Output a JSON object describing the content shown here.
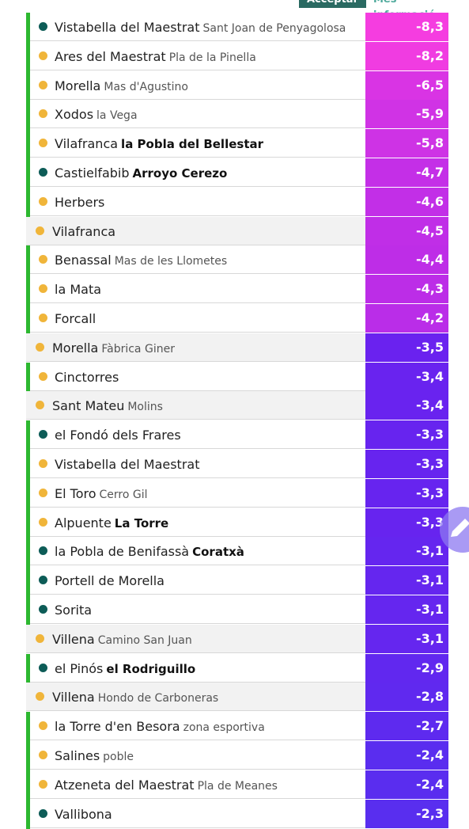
{
  "header": {
    "buttons": [
      "Acceptar",
      "Més informació"
    ]
  },
  "table": {
    "rows": [
      {
        "name": "Vistabella del Maestrat",
        "sub": "Sant Joan de Penyagolosa",
        "value": "-8,3",
        "dot": "#0d5c57",
        "bar": true,
        "shaded": false,
        "color": "#f53de0"
      },
      {
        "name": "Ares del Maestrat",
        "sub": "Pla de la Pinella",
        "value": "-8,2",
        "dot": "#f0b53a",
        "bar": true,
        "shaded": false,
        "color": "#f03ce1"
      },
      {
        "name": "Morella",
        "sub": "Mas d'Agustino",
        "value": "-6,5",
        "dot": "#f0b53a",
        "bar": true,
        "shaded": false,
        "color": "#d934e4"
      },
      {
        "name": "Xodos",
        "sub": "la Vega",
        "value": "-5,9",
        "dot": "#f0b53a",
        "bar": true,
        "shaded": false,
        "color": "#d033e5"
      },
      {
        "name": "Vilafranca",
        "sub": "la Pobla del Bellestar",
        "bold": true,
        "value": "-5,8",
        "dot": "#f0b53a",
        "bar": true,
        "shaded": false,
        "color": "#ce33e5"
      },
      {
        "name": "Castielfabib",
        "sub": "Arroyo Cerezo",
        "bold": true,
        "value": "-4,7",
        "dot": "#0d5c57",
        "bar": true,
        "shaded": false,
        "color": "#c42fe7"
      },
      {
        "name": "Herbers",
        "value": "-4,6",
        "dot": "#f0b53a",
        "bar": true,
        "shaded": false,
        "color": "#c22fe7"
      },
      {
        "name": "Vilafranca",
        "value": "-4,5",
        "dot": "#f0b53a",
        "bar": false,
        "shaded": true,
        "color": "#c02ee7"
      },
      {
        "name": "Benassal",
        "sub": "Mas de les Llometes",
        "value": "-4,4",
        "dot": "#f0b53a",
        "bar": true,
        "shaded": false,
        "color": "#be2de7"
      },
      {
        "name": "la Mata",
        "value": "-4,3",
        "dot": "#f0b53a",
        "bar": true,
        "shaded": false,
        "color": "#bc2de7"
      },
      {
        "name": "Forcall",
        "value": "-4,2",
        "dot": "#f0b53a",
        "bar": true,
        "shaded": false,
        "color": "#ba2de8"
      },
      {
        "name": "Morella",
        "sub": "Fàbrica Giner",
        "value": "-3,5",
        "dot": "#f0b53a",
        "bar": false,
        "shaded": true,
        "color": "#6a22ef"
      },
      {
        "name": "Cinctorres",
        "value": "-3,4",
        "dot": "#f0b53a",
        "bar": true,
        "shaded": false,
        "color": "#6923ef"
      },
      {
        "name": "Sant Mateu",
        "sub": "Molins",
        "value": "-3,4",
        "dot": "#f0b53a",
        "bar": false,
        "shaded": true,
        "color": "#6923ef"
      },
      {
        "name": "el Fondó dels Frares",
        "value": "-3,3",
        "dot": "#0d5c57",
        "bar": true,
        "shaded": false,
        "color": "#6724ef"
      },
      {
        "name": "Vistabella del Maestrat",
        "value": "-3,3",
        "dot": "#f0b53a",
        "bar": true,
        "shaded": false,
        "color": "#6724ef"
      },
      {
        "name": "El Toro",
        "sub": "Cerro Gil",
        "value": "-3,3",
        "dot": "#f0b53a",
        "bar": true,
        "shaded": false,
        "color": "#6724ef"
      },
      {
        "name": "Alpuente",
        "sub": "La Torre",
        "bold": true,
        "value": "-3,3",
        "dot": "#f0b53a",
        "bar": true,
        "shaded": false,
        "color": "#6724ef"
      },
      {
        "name": "la Pobla de Benifassà",
        "sub": "Coratxà",
        "bold": true,
        "value": "-3,1",
        "dot": "#0d5c57",
        "bar": true,
        "shaded": false,
        "color": "#6526ef"
      },
      {
        "name": "Portell de Morella",
        "value": "-3,1",
        "dot": "#0d5c57",
        "bar": true,
        "shaded": false,
        "color": "#6526ef"
      },
      {
        "name": "Sorita",
        "value": "-3,1",
        "dot": "#0d5c57",
        "bar": true,
        "shaded": false,
        "color": "#6526ef"
      },
      {
        "name": "Villena",
        "sub": "Camino San Juan",
        "value": "-3,1",
        "dot": "#f0b53a",
        "bar": false,
        "shaded": true,
        "color": "#6526ef"
      },
      {
        "name": "el Pinós",
        "sub": "el Rodriguillo",
        "bold": true,
        "value": "-2,9",
        "dot": "#0d5c57",
        "bar": true,
        "shaded": false,
        "color": "#6128ef"
      },
      {
        "name": "Villena",
        "sub": "Hondo de Carboneras",
        "value": "-2,8",
        "dot": "#f0b53a",
        "bar": false,
        "shaded": true,
        "color": "#6029ef"
      },
      {
        "name": "la Torre d'en Besora",
        "sub": "zona esportiva",
        "value": "-2,7",
        "dot": "#f0b53a",
        "bar": true,
        "shaded": false,
        "color": "#5e2aef"
      },
      {
        "name": "Salines",
        "sub": "poble",
        "value": "-2,4",
        "dot": "#f0b53a",
        "bar": true,
        "shaded": false,
        "color": "#5a2def"
      },
      {
        "name": "Atzeneta del Maestrat",
        "sub": "Pla de Meanes",
        "value": "-2,4",
        "dot": "#f0b53a",
        "bar": true,
        "shaded": false,
        "color": "#5a2def"
      },
      {
        "name": "Vallibona",
        "value": "-2,3",
        "dot": "#0d5c57",
        "bar": true,
        "shaded": false,
        "color": "#592eef"
      }
    ]
  }
}
